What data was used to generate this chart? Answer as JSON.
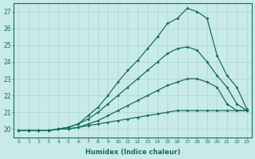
{
  "xlabel": "Humidex (Indice chaleur)",
  "ylabel": "",
  "background_color": "#c8ebe8",
  "grid_color": "#b0d8d4",
  "line_color": "#1a6b60",
  "xlim": [
    -0.5,
    23.5
  ],
  "ylim": [
    19.5,
    27.5
  ],
  "xticks": [
    0,
    1,
    2,
    3,
    4,
    5,
    6,
    7,
    8,
    9,
    10,
    11,
    12,
    13,
    14,
    15,
    16,
    17,
    18,
    19,
    20,
    21,
    22,
    23
  ],
  "yticks": [
    20,
    21,
    22,
    23,
    24,
    25,
    26,
    27
  ],
  "series": [
    {
      "x": [
        0,
        1,
        2,
        3,
        4,
        5,
        6,
        7,
        8,
        9,
        10,
        11,
        12,
        13,
        14,
        15,
        16,
        17,
        18,
        19,
        20,
        21,
        22,
        23
      ],
      "y": [
        19.9,
        19.9,
        19.9,
        19.9,
        20.0,
        20.0,
        20.1,
        20.2,
        20.3,
        20.4,
        20.5,
        20.6,
        20.7,
        20.8,
        20.9,
        21.0,
        21.1,
        21.1,
        21.1,
        21.1,
        21.1,
        21.1,
        21.1,
        21.1
      ]
    },
    {
      "x": [
        0,
        1,
        2,
        3,
        4,
        5,
        6,
        7,
        8,
        9,
        10,
        11,
        12,
        13,
        14,
        15,
        16,
        17,
        18,
        19,
        20,
        21,
        22,
        23
      ],
      "y": [
        19.9,
        19.9,
        19.9,
        19.9,
        20.0,
        20.0,
        20.1,
        20.3,
        20.5,
        20.8,
        21.1,
        21.4,
        21.7,
        22.0,
        22.3,
        22.6,
        22.8,
        23.0,
        23.0,
        22.8,
        22.5,
        21.5,
        21.1,
        21.1
      ]
    },
    {
      "x": [
        0,
        1,
        2,
        3,
        4,
        5,
        6,
        7,
        8,
        9,
        10,
        11,
        12,
        13,
        14,
        15,
        16,
        17,
        18,
        19,
        20,
        21,
        22,
        23
      ],
      "y": [
        19.9,
        19.9,
        19.9,
        19.9,
        20.0,
        20.1,
        20.3,
        20.6,
        21.0,
        21.5,
        22.0,
        22.5,
        23.0,
        23.5,
        24.0,
        24.5,
        24.8,
        24.9,
        24.7,
        24.0,
        23.2,
        22.5,
        21.5,
        21.1
      ]
    },
    {
      "x": [
        0,
        1,
        2,
        3,
        4,
        5,
        6,
        7,
        8,
        9,
        10,
        11,
        12,
        13,
        14,
        15,
        16,
        17,
        18,
        19,
        20,
        21,
        22,
        23
      ],
      "y": [
        19.9,
        19.9,
        19.9,
        19.9,
        20.0,
        20.1,
        20.3,
        20.8,
        21.3,
        22.0,
        22.8,
        23.5,
        24.1,
        24.8,
        25.5,
        26.3,
        26.6,
        27.2,
        27.0,
        26.6,
        24.4,
        23.2,
        22.5,
        21.2
      ]
    }
  ]
}
